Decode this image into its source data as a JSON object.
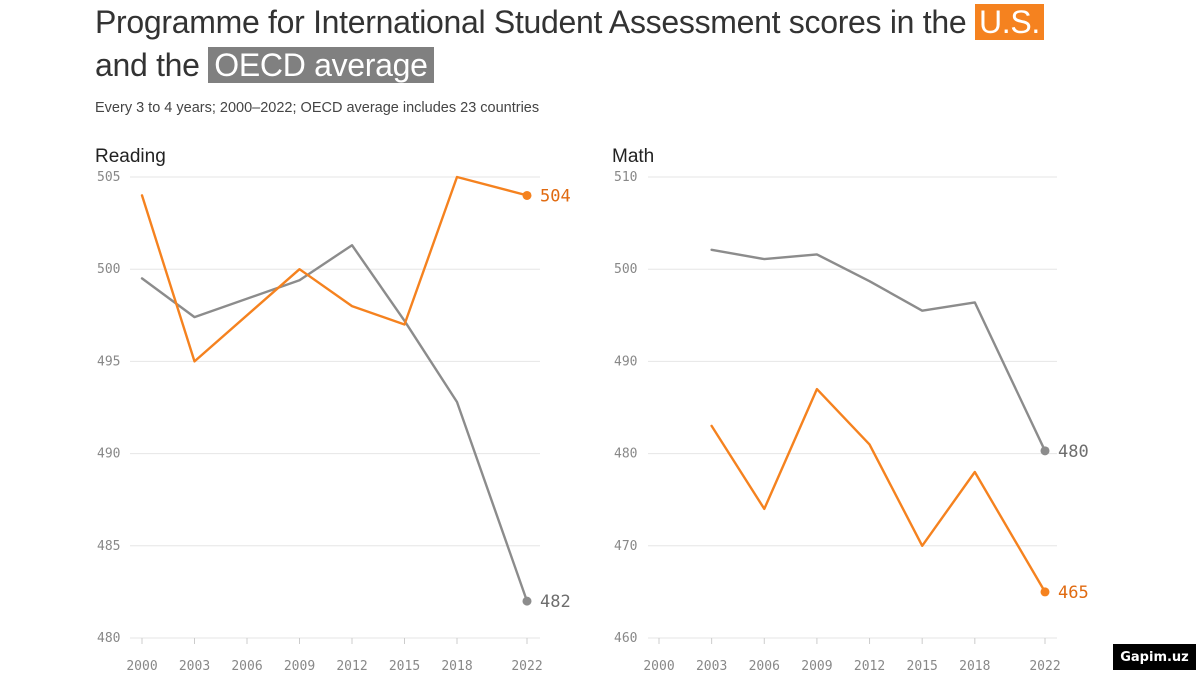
{
  "title": {
    "prefix": "Programme for International Student Assessment scores in the",
    "us_label": "U.S.",
    "and_the": "and the",
    "oecd_label": "OECD average"
  },
  "subtitle": "Every 3 to 4 years; 2000–2022; OECD average includes 23 countries",
  "brand": "Gapim.uz",
  "colors": {
    "us": "#f5821f",
    "oecd": "#8c8c8c",
    "us_label": "#e06a10",
    "oecd_label": "#6e6e6e",
    "grid": "#e6e6e6"
  },
  "chart_data": [
    {
      "type": "line",
      "title": "Reading",
      "xlabel": "",
      "ylabel": "",
      "x_ticks": [
        2000,
        2003,
        2006,
        2009,
        2012,
        2015,
        2018,
        2022
      ],
      "xlim": [
        2000,
        2022
      ],
      "ylim": [
        480,
        505
      ],
      "y_ticks": [
        480,
        485,
        490,
        495,
        500,
        505
      ],
      "grid": true,
      "series": [
        {
          "key": "us",
          "x": [
            2000,
            2003,
            2009,
            2012,
            2015,
            2018,
            2022
          ],
          "values": [
            504,
            495,
            500,
            498,
            497,
            505,
            504
          ],
          "end_label": "504"
        },
        {
          "key": "oecd",
          "x": [
            2000,
            2003,
            2009,
            2012,
            2015,
            2018,
            2022
          ],
          "values": [
            499.5,
            497.4,
            499.4,
            501.3,
            497.2,
            492.8,
            482
          ],
          "end_label": "482"
        }
      ]
    },
    {
      "type": "line",
      "title": "Math",
      "xlabel": "",
      "ylabel": "",
      "x_ticks": [
        2000,
        2003,
        2006,
        2009,
        2012,
        2015,
        2018,
        2022
      ],
      "xlim": [
        2000,
        2022
      ],
      "ylim": [
        460,
        510
      ],
      "y_ticks": [
        460,
        470,
        480,
        490,
        500,
        510
      ],
      "grid": true,
      "series": [
        {
          "key": "us",
          "x": [
            2003,
            2006,
            2009,
            2012,
            2015,
            2018,
            2022
          ],
          "values": [
            483,
            474,
            487,
            481,
            470,
            478,
            465
          ],
          "end_label": "465"
        },
        {
          "key": "oecd",
          "x": [
            2003,
            2006,
            2009,
            2012,
            2015,
            2018,
            2022
          ],
          "values": [
            502.1,
            501.1,
            501.6,
            498.7,
            495.5,
            496.4,
            480.3
          ],
          "end_label": "480"
        }
      ]
    }
  ]
}
